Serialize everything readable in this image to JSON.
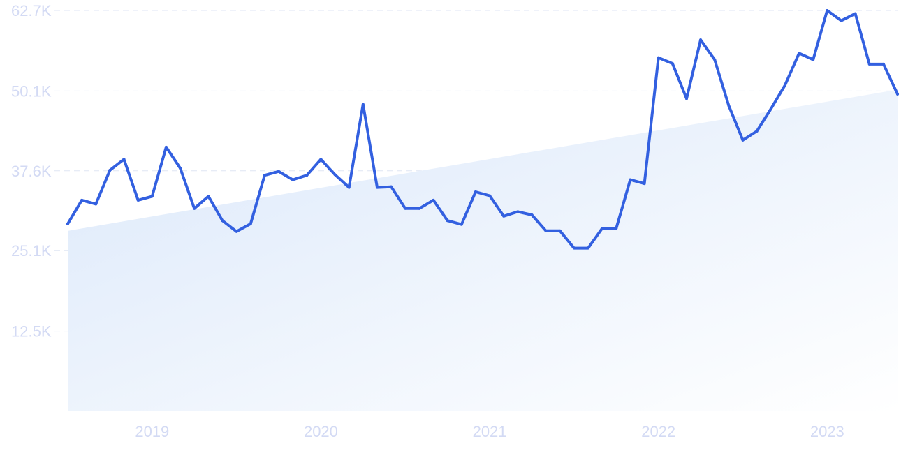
{
  "chart_data": {
    "type": "line",
    "title": "",
    "xlabel": "",
    "ylabel": "",
    "ylim": [
      0,
      62700
    ],
    "grid": true,
    "y_ticks": [
      {
        "value": 12500,
        "label": "12.5K"
      },
      {
        "value": 25100,
        "label": "25.1K"
      },
      {
        "value": 37600,
        "label": "37.6K"
      },
      {
        "value": 50100,
        "label": "50.1K"
      },
      {
        "value": 62700,
        "label": "62.7K"
      }
    ],
    "x_ticks": [
      {
        "value": "2019-01",
        "label": "2019"
      },
      {
        "value": "2020-01",
        "label": "2020"
      },
      {
        "value": "2021-01",
        "label": "2021"
      },
      {
        "value": "2022-01",
        "label": "2022"
      },
      {
        "value": "2023-01",
        "label": "2023"
      }
    ],
    "x_range": [
      "2018-07",
      "2023-06"
    ],
    "colors": {
      "line": "#3360e0",
      "trend_fill_start": "#dbe8fa",
      "trend_fill_end": "#ffffff",
      "grid": "#dfe5f4",
      "tick_text": "#d3daf4"
    },
    "series": [
      {
        "x": [
          "2018-07",
          "2018-08",
          "2018-09",
          "2018-10",
          "2018-11",
          "2018-12",
          "2019-01",
          "2019-02",
          "2019-03",
          "2019-04",
          "2019-05",
          "2019-06",
          "2019-07",
          "2019-08",
          "2019-09",
          "2019-10",
          "2019-11",
          "2019-12",
          "2020-01",
          "2020-02",
          "2020-03",
          "2020-04",
          "2020-05",
          "2020-06",
          "2020-07",
          "2020-08",
          "2020-09",
          "2020-10",
          "2020-11",
          "2020-12",
          "2021-01",
          "2021-02",
          "2021-03",
          "2021-04",
          "2021-05",
          "2021-06",
          "2021-07",
          "2021-08",
          "2021-09",
          "2021-10",
          "2021-11",
          "2021-12",
          "2022-01",
          "2022-02",
          "2022-03",
          "2022-04",
          "2022-05",
          "2022-06",
          "2022-07",
          "2022-08",
          "2022-09",
          "2022-10",
          "2022-11",
          "2022-12",
          "2023-01",
          "2023-02",
          "2023-03",
          "2023-04",
          "2023-05",
          "2023-06"
        ],
        "values": [
          29300,
          33000,
          32400,
          37700,
          39400,
          33000,
          33600,
          41300,
          38000,
          31700,
          33600,
          29800,
          28100,
          29300,
          36900,
          37500,
          36200,
          36900,
          39400,
          37000,
          35000,
          48000,
          35000,
          35100,
          31700,
          31700,
          33000,
          29800,
          29200,
          34300,
          33700,
          30500,
          31200,
          30700,
          28200,
          28200,
          25500,
          25500,
          28600,
          28600,
          36200,
          35600,
          55300,
          54400,
          48900,
          58100,
          55000,
          47800,
          42400,
          43800,
          47300,
          51000,
          56000,
          55000,
          62700,
          61100,
          62200,
          54300,
          54300,
          49600
        ]
      }
    ],
    "trend": {
      "start": 28200,
      "end": 50300
    }
  }
}
